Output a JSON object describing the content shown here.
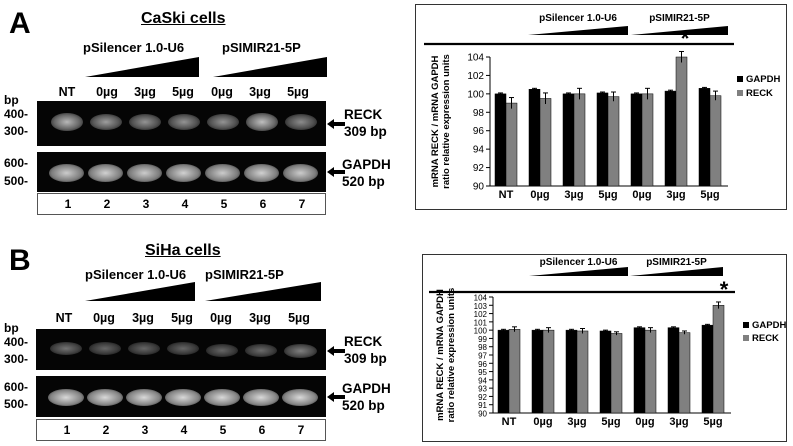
{
  "panels": [
    {
      "letter": "A",
      "cell_line": "CaSki cells",
      "vectors": [
        "pSilencer 1.0-U6",
        "pSIMIR21-5P"
      ],
      "lane_labels": [
        "NT",
        "0µg",
        "3µg",
        "5µg",
        "0µg",
        "3µg",
        "5µg"
      ],
      "bp_label": "bp",
      "reck_markers": [
        "400-",
        "300-"
      ],
      "gapdh_markers": [
        "600-",
        "500-"
      ],
      "reck_gene": "RECK",
      "reck_size": "309 bp",
      "gapdh_gene": "GAPDH",
      "gapdh_size": "520 bp",
      "lane_numbers": [
        "1",
        "2",
        "3",
        "4",
        "5",
        "6",
        "7"
      ],
      "reck_band_intensity": [
        0.72,
        0.62,
        0.58,
        0.58,
        0.58,
        0.75,
        0.55
      ],
      "gapdh_band_intensity": [
        0.8,
        0.82,
        0.8,
        0.82,
        0.8,
        0.82,
        0.8
      ]
    },
    {
      "letter": "B",
      "cell_line": "SiHa cells",
      "vectors": [
        "pSilencer 1.0-U6",
        "pSIMIR21-5P"
      ],
      "lane_labels": [
        "NT",
        "0µg",
        "3µg",
        "5µg",
        "0µg",
        "3µg",
        "5µg"
      ],
      "bp_label": "bp",
      "reck_markers": [
        "400-",
        "300-"
      ],
      "gapdh_markers": [
        "600-",
        "500-"
      ],
      "reck_gene": "RECK",
      "reck_size": "309 bp",
      "gapdh_gene": "GAPDH",
      "gapdh_size": "520 bp",
      "lane_numbers": [
        "1",
        "2",
        "3",
        "4",
        "5",
        "6",
        "7"
      ],
      "reck_band_intensity": [
        0.45,
        0.4,
        0.4,
        0.4,
        0.4,
        0.42,
        0.5
      ],
      "gapdh_band_intensity": [
        0.85,
        0.85,
        0.85,
        0.85,
        0.85,
        0.85,
        0.85
      ]
    }
  ],
  "chart_data": [
    {
      "type": "bar",
      "ylabel": "mRNA RECK / mRNA GAPDH ratio relative expression units",
      "ylim": [
        90,
        104
      ],
      "yticks": [
        90,
        92,
        94,
        96,
        98,
        100,
        102,
        104
      ],
      "categories": [
        "NT",
        "0µg",
        "3µg",
        "5µg",
        "0µg",
        "3µg",
        "5µg"
      ],
      "vector_labels": [
        "pSilencer 1.0-U6",
        "pSIMIR21-5P"
      ],
      "series": [
        {
          "name": "GAPDH",
          "color": "#000000",
          "values": [
            100.0,
            100.5,
            100.0,
            100.1,
            100.0,
            100.3,
            100.6
          ],
          "errors": [
            0.1,
            0.1,
            0.1,
            0.1,
            0.1,
            0.1,
            0.1
          ]
        },
        {
          "name": "RECK",
          "color": "#808080",
          "values": [
            99.0,
            99.5,
            100.0,
            99.7,
            100.0,
            104.0,
            99.8
          ],
          "errors": [
            0.6,
            0.6,
            0.6,
            0.5,
            0.6,
            0.6,
            0.5
          ]
        }
      ],
      "significance": "*",
      "legend": "right"
    },
    {
      "type": "bar",
      "ylabel": "mRNA RECK / mRNA GAPDH ratio relative expression units",
      "ylim": [
        90,
        104
      ],
      "yticks": [
        90,
        91,
        92,
        93,
        94,
        95,
        96,
        97,
        98,
        99,
        100,
        101,
        102,
        103,
        104
      ],
      "categories": [
        "NT",
        "0µg",
        "3µg",
        "5µg",
        "0µg",
        "3µg",
        "5µg"
      ],
      "vector_labels": [
        "pSilencer 1.0-U6",
        "pSIMIR21-5P"
      ],
      "series": [
        {
          "name": "GAPDH",
          "color": "#000000",
          "values": [
            100.0,
            100.0,
            100.0,
            99.9,
            100.3,
            100.3,
            100.6
          ],
          "errors": [
            0.1,
            0.1,
            0.1,
            0.1,
            0.1,
            0.1,
            0.1
          ]
        },
        {
          "name": "RECK",
          "color": "#808080",
          "values": [
            100.1,
            100.0,
            99.9,
            99.6,
            100.0,
            99.7,
            103.0
          ],
          "errors": [
            0.3,
            0.3,
            0.3,
            0.2,
            0.3,
            0.2,
            0.4
          ]
        }
      ],
      "significance": "*",
      "legend": "right"
    }
  ]
}
